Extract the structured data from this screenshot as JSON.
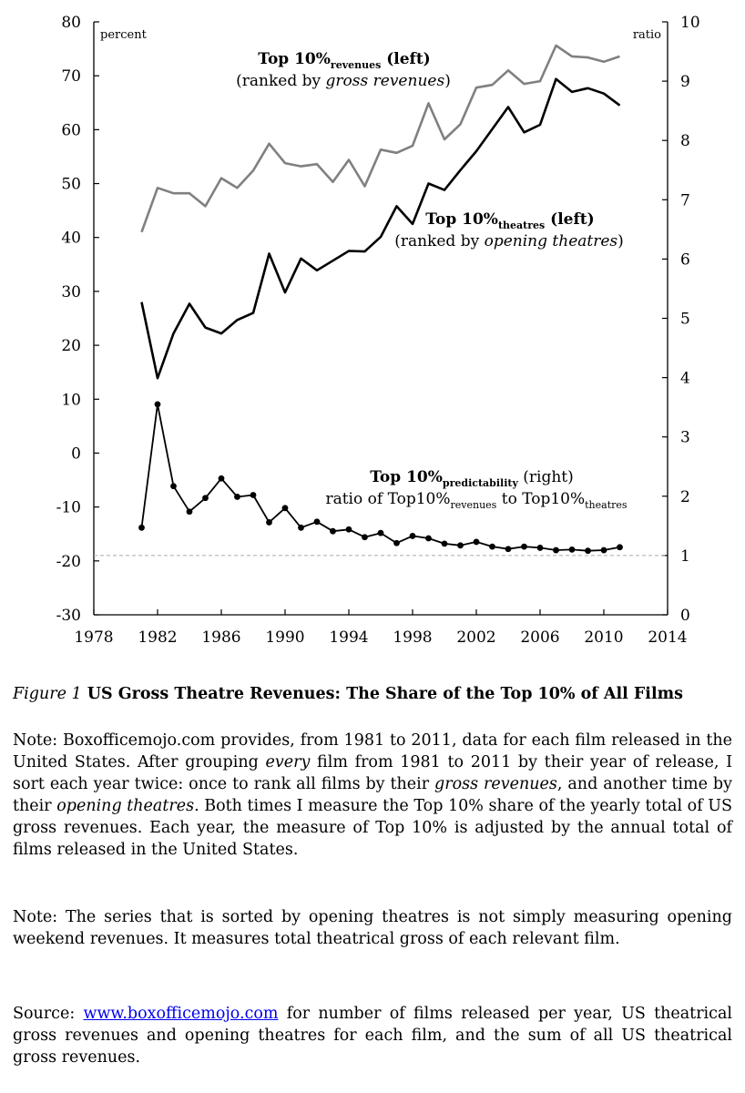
{
  "chart_data": {
    "type": "line",
    "xlim": [
      1978,
      2014
    ],
    "x_ticks": [
      "1978",
      "1982",
      "1986",
      "1990",
      "1994",
      "1998",
      "2002",
      "2006",
      "2010",
      "2014"
    ],
    "ylim_left": [
      -30,
      80
    ],
    "y_ticks_left": [
      "80",
      "70",
      "60",
      "50",
      "40",
      "30",
      "20",
      "10",
      "0",
      "-10",
      "-20",
      "-30"
    ],
    "ylim_right": [
      0,
      10
    ],
    "y_ticks_right": [
      "10",
      "9",
      "8",
      "7",
      "6",
      "5",
      "4",
      "3",
      "2",
      "1",
      "0"
    ],
    "left_unit_label": "percent",
    "right_unit_label": "ratio",
    "reference_line_right": 1,
    "x": [
      1981,
      1982,
      1983,
      1984,
      1985,
      1986,
      1987,
      1988,
      1989,
      1990,
      1991,
      1992,
      1993,
      1994,
      1995,
      1996,
      1997,
      1998,
      1999,
      2000,
      2001,
      2002,
      2003,
      2004,
      2005,
      2006,
      2007,
      2008,
      2009,
      2010,
      2011
    ],
    "series": [
      {
        "name": "Top 10% revenues (left)",
        "axis": "left",
        "color": "#808080",
        "values": [
          41,
          49.2,
          48.2,
          48.2,
          45.8,
          51,
          49.2,
          52.4,
          57.4,
          53.8,
          53.2,
          53.6,
          50.3,
          54.4,
          49.5,
          56.3,
          55.7,
          57,
          64.9,
          58.2,
          61,
          67.8,
          68.3,
          71,
          68.5,
          69,
          75.6,
          73.6,
          73.4,
          72.6,
          73.6
        ]
      },
      {
        "name": "Top 10% theatres (left)",
        "axis": "left",
        "color": "#000000",
        "values": [
          28,
          13.9,
          22.2,
          27.7,
          23.3,
          22.2,
          24.7,
          26,
          37,
          29.8,
          36.1,
          33.9,
          35.7,
          37.5,
          37.4,
          40.1,
          45.8,
          42.5,
          50,
          48.8,
          52.5,
          56,
          60.1,
          64.2,
          59.5,
          60.9,
          69.4,
          67,
          67.7,
          66.7,
          64.5
        ]
      },
      {
        "name": "Top 10% predictability (right)",
        "axis": "right",
        "color": "#000000",
        "markers": true,
        "values": [
          1.47,
          3.55,
          2.17,
          1.74,
          1.97,
          2.3,
          1.99,
          2.02,
          1.56,
          1.8,
          1.47,
          1.57,
          1.41,
          1.44,
          1.31,
          1.38,
          1.21,
          1.33,
          1.29,
          1.2,
          1.17,
          1.23,
          1.15,
          1.11,
          1.15,
          1.13,
          1.09,
          1.1,
          1.08,
          1.09,
          1.14
        ]
      }
    ],
    "annotations": {
      "rev_main": "Top 10%",
      "rev_sub": "revenues",
      "rev_tail": " (left)",
      "rev_line2_pre": "(ranked by ",
      "rev_line2_em": "gross revenues",
      "rev_line2_post": ")",
      "th_main": "Top 10%",
      "th_sub": "theatres",
      "th_tail": " (left)",
      "th_line2_pre": "(ranked by ",
      "th_line2_em": "opening theatres",
      "th_line2_post": ")",
      "pr_main": "Top 10%",
      "pr_sub": "predictability",
      "pr_tail": " (right)",
      "pr_line2_a": "ratio of Top10%",
      "pr_line2_sub1": "revenues",
      "pr_line2_b": " to Top10%",
      "pr_line2_sub2": "theatres"
    }
  },
  "caption": {
    "figure_label": "Figure 1",
    "title": " US Gross Theatre Revenues: The Share of the Top 10% of All Films"
  },
  "note1": {
    "a": "Note: Boxofficemojo.com provides, from 1981 to 2011, data for each film released in the United States. After grouping ",
    "em1": "every",
    "b": " film from 1981 to 2011 by their year of release, I sort each year twice: once to rank all films by their ",
    "em2": "gross revenues",
    "c": ", and another time by their ",
    "em3": "opening theatres",
    "d": ". Both times I measure the Top 10% share of the yearly total of US gross revenues. Each year, the measure of Top 10% is adjusted by the annual total of films released in the United States."
  },
  "note2": "Note: The series that is sorted by opening theatres is not simply measuring opening weekend revenues. It measures total theatrical gross of each relevant film.",
  "source": {
    "label": "Source: ",
    "link": "www.boxofficemojo.com",
    "rest": " for number of films released per year, US theatrical gross revenues and opening theatres for each film, and the sum of all US theatrical gross revenues."
  }
}
